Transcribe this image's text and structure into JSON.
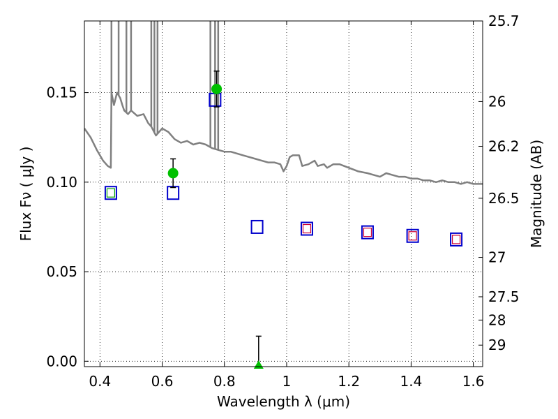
{
  "chart_data": {
    "type": "scatter",
    "title": "",
    "xlabel": "Wavelength  λ (μm)",
    "ylabel": "Flux  Fν  ( μJy )",
    "y2label": "Magnitude (AB)",
    "xlim": [
      0.35,
      1.63
    ],
    "ylim": [
      -0.003,
      0.19
    ],
    "x_ticks": [
      0.4,
      0.6,
      0.8,
      1.0,
      1.2,
      1.4,
      1.6
    ],
    "x_tick_labels": [
      "0.4",
      "0.6",
      "0.8",
      "1",
      "1.2",
      "1.4",
      "1.6"
    ],
    "y_ticks": [
      0.0,
      0.05,
      0.1,
      0.15
    ],
    "y_tick_labels": [
      "0.00",
      "0.05",
      "0.10",
      "0.15"
    ],
    "y2_ticks": [
      {
        "flux": 0.19,
        "label": "25.7"
      },
      {
        "flux": 0.145,
        "label": "26"
      },
      {
        "flux": 0.12,
        "label": "26.2"
      },
      {
        "flux": 0.091,
        "label": "26.5"
      },
      {
        "flux": 0.058,
        "label": "27"
      },
      {
        "flux": 0.036,
        "label": "27.5"
      },
      {
        "flux": 0.023,
        "label": "28"
      },
      {
        "flux": 0.009,
        "label": "29"
      }
    ],
    "grid": true,
    "colors": {
      "model": "#808080",
      "observed": "#00c000",
      "model_photometry": "#0000cc",
      "inner_marker_red": "#cc0033",
      "inner_marker_green": "#00a000",
      "errorbar": "#000000"
    },
    "model_spectrum": [
      [
        0.35,
        0.13
      ],
      [
        0.37,
        0.125
      ],
      [
        0.39,
        0.118
      ],
      [
        0.41,
        0.112
      ],
      [
        0.425,
        0.109
      ],
      [
        0.435,
        0.108
      ],
      [
        0.437,
        0.15
      ],
      [
        0.445,
        0.143
      ],
      [
        0.455,
        0.15
      ],
      [
        0.465,
        0.147
      ],
      [
        0.472,
        0.143
      ],
      [
        0.478,
        0.14
      ],
      [
        0.49,
        0.138
      ],
      [
        0.5,
        0.14
      ],
      [
        0.52,
        0.137
      ],
      [
        0.54,
        0.138
      ],
      [
        0.555,
        0.133
      ],
      [
        0.565,
        0.131
      ],
      [
        0.58,
        0.126
      ],
      [
        0.6,
        0.13
      ],
      [
        0.62,
        0.128
      ],
      [
        0.64,
        0.124
      ],
      [
        0.66,
        0.122
      ],
      [
        0.68,
        0.123
      ],
      [
        0.7,
        0.121
      ],
      [
        0.72,
        0.122
      ],
      [
        0.74,
        0.121
      ],
      [
        0.76,
        0.119
      ],
      [
        0.78,
        0.118
      ],
      [
        0.8,
        0.117
      ],
      [
        0.82,
        0.117
      ],
      [
        0.84,
        0.116
      ],
      [
        0.86,
        0.115
      ],
      [
        0.88,
        0.114
      ],
      [
        0.9,
        0.113
      ],
      [
        0.92,
        0.112
      ],
      [
        0.94,
        0.111
      ],
      [
        0.96,
        0.111
      ],
      [
        0.98,
        0.11
      ],
      [
        0.99,
        0.106
      ],
      [
        1.0,
        0.109
      ],
      [
        1.01,
        0.114
      ],
      [
        1.02,
        0.115
      ],
      [
        1.04,
        0.115
      ],
      [
        1.05,
        0.109
      ],
      [
        1.07,
        0.11
      ],
      [
        1.09,
        0.112
      ],
      [
        1.1,
        0.109
      ],
      [
        1.12,
        0.11
      ],
      [
        1.13,
        0.108
      ],
      [
        1.15,
        0.11
      ],
      [
        1.17,
        0.11
      ],
      [
        1.2,
        0.108
      ],
      [
        1.23,
        0.106
      ],
      [
        1.26,
        0.105
      ],
      [
        1.28,
        0.104
      ],
      [
        1.3,
        0.103
      ],
      [
        1.32,
        0.105
      ],
      [
        1.34,
        0.104
      ],
      [
        1.36,
        0.103
      ],
      [
        1.38,
        0.103
      ],
      [
        1.4,
        0.102
      ],
      [
        1.42,
        0.102
      ],
      [
        1.44,
        0.101
      ],
      [
        1.46,
        0.101
      ],
      [
        1.48,
        0.1
      ],
      [
        1.5,
        0.101
      ],
      [
        1.52,
        0.1
      ],
      [
        1.54,
        0.1
      ],
      [
        1.56,
        0.099
      ],
      [
        1.58,
        0.1
      ],
      [
        1.6,
        0.099
      ],
      [
        1.63,
        0.099
      ]
    ],
    "emission_lines": [
      {
        "x": 0.437,
        "peak": 0.19
      },
      {
        "x": 0.46,
        "peak": 0.19
      },
      {
        "x": 0.485,
        "peak": 0.19
      },
      {
        "x": 0.5,
        "peak": 0.19
      },
      {
        "x": 0.565,
        "peak": 0.19
      },
      {
        "x": 0.575,
        "peak": 0.19
      },
      {
        "x": 0.585,
        "peak": 0.19
      },
      {
        "x": 0.755,
        "peak": 0.19
      },
      {
        "x": 0.77,
        "peak": 0.19
      },
      {
        "x": 0.78,
        "peak": 0.19
      }
    ],
    "observed_points": [
      {
        "x": 0.635,
        "y": 0.105,
        "err": 0.008
      },
      {
        "x": 0.775,
        "y": 0.152,
        "err": 0.01
      },
      {
        "x": 0.91,
        "y": -0.003,
        "err": 0.017,
        "marker": "triangle"
      }
    ],
    "model_photometry": [
      {
        "x": 0.435,
        "y": 0.094,
        "inner": "green"
      },
      {
        "x": 0.635,
        "y": 0.094
      },
      {
        "x": 0.77,
        "y": 0.146
      },
      {
        "x": 0.905,
        "y": 0.075
      },
      {
        "x": 1.065,
        "y": 0.074,
        "inner": "red"
      },
      {
        "x": 1.26,
        "y": 0.072,
        "inner": "red"
      },
      {
        "x": 1.405,
        "y": 0.07,
        "inner": "red"
      },
      {
        "x": 1.545,
        "y": 0.068,
        "inner": "red"
      }
    ]
  }
}
